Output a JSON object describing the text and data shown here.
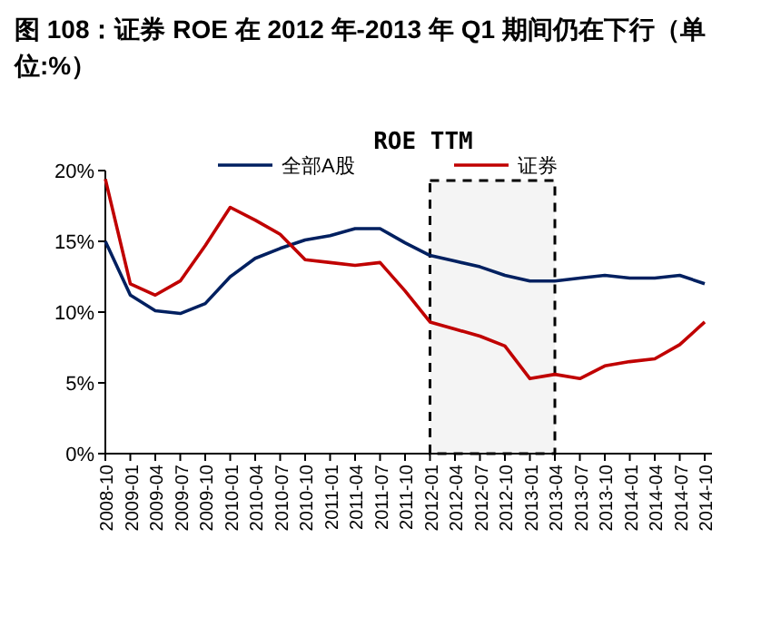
{
  "chart_data": {
    "type": "line",
    "title": "图 108：证券 ROE 在 2012 年-2013 年 Q1 期间仍在下行（单位:%）",
    "subtitle": "ROE TTM",
    "categories": [
      "2008-10",
      "2009-01",
      "2009-04",
      "2009-07",
      "2009-10",
      "2010-01",
      "2010-04",
      "2010-07",
      "2010-10",
      "2011-01",
      "2011-04",
      "2011-07",
      "2011-10",
      "2012-01",
      "2012-04",
      "2012-07",
      "2012-10",
      "2013-01",
      "2013-04",
      "2013-07",
      "2013-10",
      "2014-01",
      "2014-04",
      "2014-07",
      "2014-10"
    ],
    "series": [
      {
        "name": "全部A股",
        "color": "#002060",
        "values": [
          15.0,
          11.2,
          10.1,
          9.9,
          10.6,
          12.5,
          13.8,
          14.5,
          15.1,
          15.4,
          15.9,
          15.9,
          14.9,
          14.0,
          13.6,
          13.2,
          12.6,
          12.2,
          12.2,
          12.4,
          12.6,
          12.4,
          12.4,
          12.6,
          12.0
        ]
      },
      {
        "name": "证券",
        "color": "#c00000",
        "values": [
          19.4,
          12.0,
          11.2,
          12.2,
          14.7,
          17.4,
          16.5,
          15.5,
          13.7,
          13.5,
          13.3,
          13.5,
          11.5,
          9.3,
          8.8,
          8.3,
          7.6,
          5.3,
          5.6,
          5.3,
          6.2,
          6.5,
          6.7,
          7.7,
          9.3
        ]
      }
    ],
    "ylim": [
      0,
      20
    ],
    "yticks": [
      {
        "value": 0,
        "label": "0%"
      },
      {
        "value": 5,
        "label": "5%"
      },
      {
        "value": 10,
        "label": "10%"
      },
      {
        "value": 15,
        "label": "15%"
      },
      {
        "value": 20,
        "label": "20%"
      }
    ],
    "bands": [
      {
        "axis": "x",
        "from": "2012-01",
        "to": "2013-04",
        "color": "#f4f4f4"
      }
    ],
    "legend": "top",
    "grid": false,
    "marker": "none",
    "line_style": "solid"
  }
}
